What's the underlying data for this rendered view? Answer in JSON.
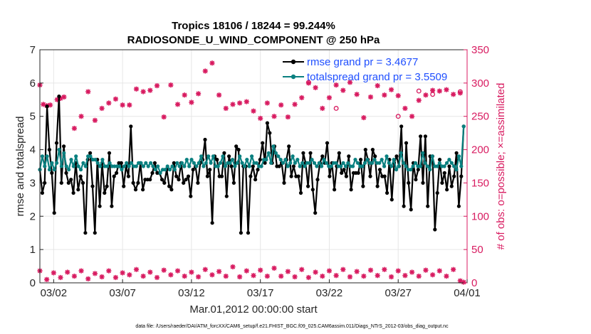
{
  "chart_data": {
    "type": "line",
    "title_line1": "Tropics 18106 / 18244 = 99.244%",
    "title_line2": "RADIOSONDE_U_WIND_COMPONENT @ 250 hPa",
    "xlabel": "Mar.01,2012 00:00:00 start",
    "ylabel_left": "rmse and totalspread",
    "ylabel_right": "# of obs: o=possible; ×=assimilated",
    "footnote": "data file: /Users/raeder/DAI/ATM_forcXX/CAM6_setup/f.e21.FHIST_BGC.f09_025.CAM6assim.011/Diags_NTrS_2012-03/obs_diag_output.nc",
    "xlim": [
      0,
      31
    ],
    "ylim_left": [
      0,
      7
    ],
    "ylim_right": [
      0,
      350
    ],
    "x_ticks": [
      1,
      6,
      11,
      16,
      21,
      26,
      31
    ],
    "x_tick_labels": [
      "03/02",
      "03/07",
      "03/12",
      "03/17",
      "03/22",
      "03/27",
      "04/01"
    ],
    "y_left_ticks": [
      "0",
      "1",
      "2",
      "3",
      "4",
      "5",
      "6",
      "7"
    ],
    "y_right_ticks": [
      "0",
      "50",
      "100",
      "150",
      "200",
      "250",
      "300",
      "350"
    ],
    "colors": {
      "rmse": "#000000",
      "spread": "#0a8080",
      "obs": "#d81b60",
      "legend_text": "#1f4fff",
      "grid": "#e6e6e6"
    },
    "legend": [
      {
        "label": "rmse grand pr = 3.4677"
      },
      {
        "label": "totalspread grand pr = 3.5509"
      }
    ],
    "rmse": [
      3.4,
      2.7,
      3.0,
      5.3,
      4.0,
      3.3,
      2.1,
      4.2,
      5.6,
      3.0,
      4.1,
      3.3,
      3.0,
      3.1,
      2.7,
      3.6,
      2.8,
      3.2,
      3.0,
      1.5,
      3.7,
      3.9,
      2.9,
      1.5,
      3.7,
      2.3,
      3.6,
      2.7,
      2.9,
      3.9,
      2.3,
      3.2,
      3.3,
      3.6,
      3.6,
      2.9,
      3.5,
      3.2,
      4.7,
      3.0,
      2.8,
      3.0,
      3.6,
      2.8,
      3.1,
      3.1,
      3.1,
      3.3,
      3.6,
      3.3,
      3.3,
      3.1,
      3.0,
      3.4,
      2.9,
      2.8,
      3.6,
      3.2,
      3.1,
      3.6,
      3.0,
      3.1,
      3.2,
      2.6,
      3.4,
      3.5,
      3.0,
      3.6,
      3.7,
      4.3,
      3.2,
      3.4,
      1.8,
      3.8,
      3.7,
      3.2,
      3.2,
      3.9,
      2.6,
      3.8,
      3.5,
      3.0,
      4.1,
      4.0,
      1.5,
      3.5,
      3.5,
      1.5,
      3.2,
      3.5,
      3.1,
      3.4,
      3.7,
      4.2,
      3.6,
      4.8,
      4.5,
      3.6,
      4.1,
      3.5,
      3.5,
      3.6,
      3.0,
      3.7,
      4.1,
      3.2,
      3.5,
      3.2,
      3.2,
      2.7,
      3.9,
      3.6,
      2.9,
      3.9,
      2.8,
      2.1,
      3.1,
      3.6,
      3.8,
      3.6,
      4.2,
      3.2,
      3.6,
      2.8,
      3.5,
      3.9,
      3.3,
      3.4,
      3.2,
      3.8,
      2.8,
      3.3,
      3.3,
      3.3,
      3.7,
      2.9,
      4.0,
      3.7,
      3.2,
      4.0,
      3.8,
      2.9,
      3.4,
      3.2,
      3.2,
      2.7,
      3.7,
      2.5,
      3.6,
      3.8,
      3.5,
      4.7,
      2.3,
      4.2,
      3.0,
      2.2,
      3.6,
      3.1,
      3.4,
      4.4,
      3.0,
      4.4,
      2.3,
      3.8,
      3.8,
      1.6,
      2.7,
      3.7,
      3.0,
      3.3,
      2.8,
      3.5,
      2.9,
      3.2,
      3.9,
      2.3,
      3.2,
      4.7
    ],
    "spread": [
      3.4,
      3.8,
      3.5,
      3.8,
      3.4,
      3.6,
      3.4,
      3.6,
      4.0,
      3.5,
      3.9,
      3.5,
      3.4,
      3.7,
      3.5,
      3.8,
      3.5,
      3.4,
      3.6,
      3.5,
      3.8,
      3.8,
      3.7,
      3.7,
      3.6,
      3.5,
      3.7,
      3.5,
      3.5,
      3.6,
      3.5,
      3.5,
      3.5,
      3.5,
      3.4,
      3.5,
      3.6,
      3.5,
      3.6,
      3.5,
      3.5,
      3.6,
      3.6,
      3.5,
      3.6,
      3.5,
      3.6,
      3.5,
      3.4,
      3.5,
      3.3,
      3.4,
      3.4,
      3.5,
      3.4,
      3.5,
      3.4,
      3.6,
      3.5,
      3.6,
      3.5,
      3.7,
      3.5,
      3.7,
      3.6,
      3.5,
      3.6,
      3.8,
      3.5,
      3.6,
      3.8,
      3.6,
      3.8,
      3.5,
      3.5,
      3.6,
      3.8,
      3.5,
      3.6,
      3.6,
      3.7,
      3.5,
      3.6,
      3.8,
      3.6,
      3.5,
      3.7,
      3.5,
      3.8,
      3.6,
      3.6,
      3.5,
      3.5,
      3.7,
      3.7,
      3.9,
      3.6,
      4.1,
      3.9,
      3.8,
      3.7,
      3.6,
      3.7,
      3.5,
      3.6,
      3.8,
      3.6,
      3.7,
      3.5,
      3.6,
      3.5,
      3.6,
      3.6,
      3.7,
      3.6,
      3.5,
      3.6,
      3.5,
      3.7,
      3.6,
      3.5,
      3.5,
      3.6,
      3.6,
      3.5,
      3.5,
      3.6,
      3.5,
      3.6,
      3.5,
      3.5,
      3.7,
      3.6,
      3.5,
      3.5,
      3.6,
      3.7,
      3.6,
      3.6,
      3.7,
      3.6,
      3.6,
      3.7,
      3.5,
      3.8,
      3.6,
      3.5,
      3.7,
      3.4,
      3.5,
      3.9,
      3.6,
      3.5,
      3.4,
      3.4,
      3.5,
      3.6,
      3.5,
      3.5,
      3.9,
      3.6,
      3.5,
      3.4,
      3.8,
      3.5,
      3.5,
      3.6,
      3.5,
      3.5,
      3.6,
      3.7,
      3.6,
      3.5,
      3.4,
      3.8,
      3.5,
      4.7
    ],
    "obs_assimilated_top": [
      [
        0.0,
        297
      ],
      [
        0.25,
        268
      ],
      [
        0.5,
        266
      ],
      [
        0.75,
        267
      ],
      [
        1.25,
        275
      ],
      [
        1.5,
        277
      ],
      [
        1.75,
        279
      ],
      [
        2.5,
        232
      ],
      [
        3.0,
        250
      ],
      [
        3.5,
        287
      ],
      [
        4.0,
        244
      ],
      [
        4.5,
        262
      ],
      [
        5.0,
        270
      ],
      [
        5.5,
        276
      ],
      [
        6.0,
        267
      ],
      [
        6.5,
        267
      ],
      [
        7.0,
        291
      ],
      [
        7.5,
        287
      ],
      [
        8.0,
        289
      ],
      [
        8.5,
        296
      ],
      [
        9.0,
        249
      ],
      [
        9.5,
        297
      ],
      [
        10.0,
        268
      ],
      [
        10.5,
        282
      ],
      [
        11.0,
        271
      ],
      [
        11.5,
        284
      ],
      [
        12.0,
        318
      ],
      [
        12.5,
        330
      ],
      [
        13.0,
        282
      ],
      [
        13.5,
        262
      ],
      [
        14.0,
        268
      ],
      [
        14.5,
        270
      ],
      [
        15.0,
        272
      ],
      [
        15.5,
        258
      ],
      [
        16.0,
        247
      ],
      [
        16.5,
        270
      ],
      [
        17.0,
        250
      ],
      [
        17.5,
        267
      ],
      [
        18.0,
        249
      ],
      [
        18.5,
        268
      ],
      [
        19.0,
        278
      ],
      [
        19.5,
        300
      ],
      [
        20.0,
        293
      ],
      [
        20.5,
        262
      ],
      [
        21.0,
        278
      ],
      [
        21.5,
        297
      ],
      [
        22.0,
        289
      ],
      [
        22.5,
        301
      ],
      [
        23.0,
        283
      ],
      [
        23.5,
        248
      ],
      [
        24.0,
        279
      ],
      [
        24.5,
        296
      ],
      [
        25.0,
        282
      ],
      [
        25.5,
        290
      ],
      [
        26.0,
        281
      ],
      [
        26.5,
        262
      ],
      [
        27.0,
        250
      ],
      [
        27.5,
        274
      ],
      [
        28.0,
        282
      ],
      [
        28.5,
        289
      ],
      [
        29.0,
        288
      ],
      [
        29.5,
        290
      ],
      [
        30.0,
        283
      ],
      [
        30.5,
        285
      ]
    ],
    "obs_possible_top": [
      [
        19.5,
        301
      ],
      [
        21.5,
        262
      ],
      [
        26.0,
        250
      ],
      [
        27.5,
        288
      ],
      [
        28.5,
        283
      ],
      [
        30.5,
        287
      ]
    ],
    "obs_bottom": [
      [
        0.0,
        18
      ],
      [
        0.5,
        5
      ],
      [
        1.0,
        15
      ],
      [
        1.5,
        8
      ],
      [
        2.0,
        16
      ],
      [
        2.5,
        10
      ],
      [
        3.0,
        18
      ],
      [
        3.5,
        6
      ],
      [
        4.0,
        14
      ],
      [
        4.5,
        9
      ],
      [
        5.0,
        18
      ],
      [
        5.5,
        8
      ],
      [
        6.0,
        15
      ],
      [
        6.5,
        12
      ],
      [
        7.0,
        20
      ],
      [
        7.5,
        10
      ],
      [
        8.0,
        16
      ],
      [
        8.5,
        8
      ],
      [
        9.0,
        19
      ],
      [
        9.5,
        12
      ],
      [
        10.0,
        18
      ],
      [
        10.5,
        10
      ],
      [
        11.0,
        16
      ],
      [
        11.5,
        9
      ],
      [
        12.0,
        20
      ],
      [
        12.5,
        12
      ],
      [
        13.0,
        17
      ],
      [
        13.5,
        10
      ],
      [
        14.0,
        24
      ],
      [
        14.5,
        9
      ],
      [
        15.0,
        18
      ],
      [
        15.5,
        11
      ],
      [
        16.0,
        19
      ],
      [
        16.5,
        10
      ],
      [
        17.0,
        22
      ],
      [
        17.5,
        10
      ],
      [
        18.0,
        17
      ],
      [
        18.5,
        9
      ],
      [
        19.0,
        20
      ],
      [
        19.5,
        8
      ],
      [
        20.0,
        16
      ],
      [
        20.5,
        10
      ],
      [
        21.0,
        18
      ],
      [
        21.5,
        11
      ],
      [
        22.0,
        20
      ],
      [
        22.5,
        9
      ],
      [
        23.0,
        17
      ],
      [
        23.5,
        10
      ],
      [
        24.0,
        19
      ],
      [
        24.5,
        11
      ],
      [
        25.0,
        20
      ],
      [
        25.5,
        9
      ],
      [
        26.0,
        18
      ],
      [
        26.5,
        11
      ],
      [
        27.0,
        16
      ],
      [
        27.5,
        10
      ],
      [
        28.0,
        19
      ],
      [
        28.5,
        12
      ],
      [
        29.0,
        18
      ],
      [
        29.5,
        10
      ],
      [
        30.0,
        20
      ],
      [
        30.5,
        3
      ],
      [
        30.75,
        1
      ]
    ]
  }
}
